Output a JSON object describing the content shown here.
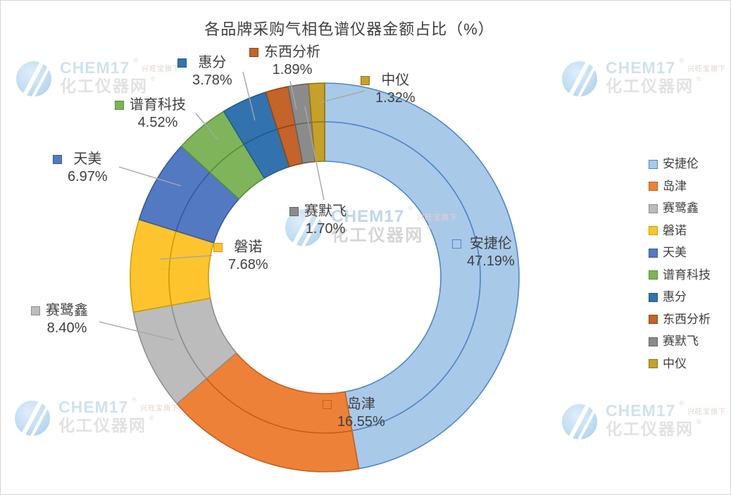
{
  "chart_data": {
    "type": "doughnut",
    "title": "各品牌采购气相色谱仪器金额占比（%）",
    "rings": 2,
    "start_angle_deg": 0,
    "direction": "clockwise",
    "legend_position": "right",
    "grid": false,
    "categories": [
      "安捷伦",
      "岛津",
      "赛鹭鑫",
      "磐诺",
      "天美",
      "谱育科技",
      "惠分",
      "东西分析",
      "赛默飞",
      "中仪"
    ],
    "values": [
      47.19,
      16.55,
      8.4,
      7.68,
      6.97,
      4.52,
      3.78,
      1.89,
      1.7,
      1.32
    ],
    "value_labels": [
      "47.19%",
      "16.55%",
      "8.40%",
      "7.68%",
      "6.97%",
      "4.52%",
      "3.78%",
      "1.89%",
      "1.70%",
      "1.32%"
    ],
    "colors": {
      "fill": [
        "#A9C9E9",
        "#EE8138",
        "#BCBCBC",
        "#FDC42D",
        "#5379C2",
        "#7FB45A",
        "#3273AE",
        "#C4632A",
        "#8B8B8B",
        "#C5A02B"
      ],
      "stroke": [
        "#4E87C7",
        "#C45F1C",
        "#8F8F8F",
        "#D09C02",
        "#3A5A9B",
        "#57903A",
        "#1F5C8B",
        "#8E4715",
        "#646464",
        "#8D7810"
      ],
      "label_text": "#3F3F3F",
      "leader_line": "#A6A6A6"
    }
  },
  "watermark": {
    "brand": "CHEM17",
    "sub": "兴旺宝旗下",
    "site": "化工仪器网",
    "reg": "®"
  }
}
